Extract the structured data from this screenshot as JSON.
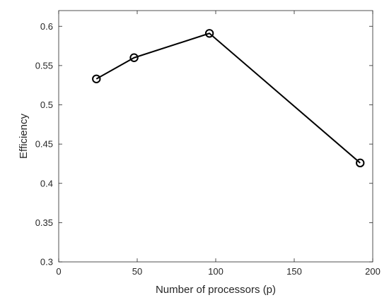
{
  "chart_data": {
    "type": "line",
    "title": "",
    "xlabel": "Number of processors (p)",
    "ylabel": "Efficiency",
    "xlim": [
      0,
      200
    ],
    "ylim": [
      0.3,
      0.62
    ],
    "x_ticks": [
      0,
      50,
      100,
      150,
      200
    ],
    "y_ticks": [
      0.3,
      0.35,
      0.4,
      0.45,
      0.5,
      0.55,
      0.6
    ],
    "x_tick_labels": [
      "0",
      "50",
      "100",
      "150",
      "200"
    ],
    "y_tick_labels": [
      "0.3",
      "0.35",
      "0.4",
      "0.45",
      "0.5",
      "0.55",
      "0.6"
    ],
    "grid": false,
    "marker": "circle-open",
    "line_color": "#000000",
    "series": [
      {
        "x": [
          24,
          48,
          96,
          192
        ],
        "y": [
          0.533,
          0.56,
          0.591,
          0.426
        ]
      }
    ]
  }
}
